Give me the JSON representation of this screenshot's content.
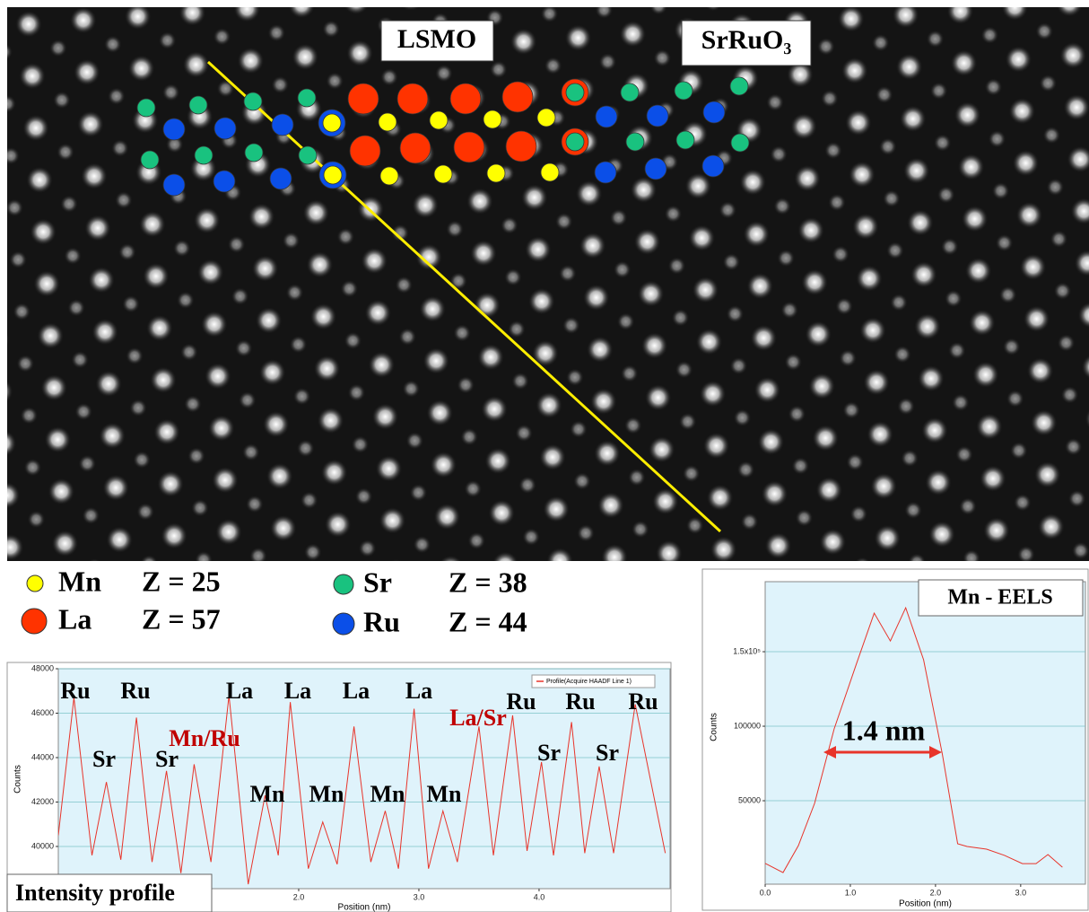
{
  "image": {
    "labels": [
      "LSMO",
      "SrRuO₃"
    ]
  },
  "legend": [
    {
      "element": "Mn",
      "z": "Z = 25",
      "color": "#ffff00"
    },
    {
      "element": "La",
      "z": "Z = 57",
      "color": "#ff3300"
    },
    {
      "element": "Sr",
      "z": "Z = 38",
      "color": "#19c27f"
    },
    {
      "element": "Ru",
      "z": "Z = 44",
      "color": "#0b4fe8"
    }
  ],
  "chart_data": [
    {
      "type": "line",
      "title": "Intensity profile",
      "xlabel": "Position (nm)",
      "ylabel": "Counts",
      "x": [
        0.0,
        0.13,
        0.28,
        0.4,
        0.52,
        0.65,
        0.78,
        0.9,
        1.02,
        1.13,
        1.27,
        1.42,
        1.58,
        1.72,
        1.83,
        1.93,
        2.08,
        2.2,
        2.32,
        2.46,
        2.6,
        2.72,
        2.83,
        2.96,
        3.08,
        3.2,
        3.32,
        3.5,
        3.62,
        3.78,
        3.9,
        4.02,
        4.12,
        4.27,
        4.38,
        4.5,
        4.62,
        4.8,
        5.05
      ],
      "series": [
        {
          "name": "Profile(Acquire HAADF Line 1)",
          "color": "#e8342a",
          "values": [
            40500,
            46700,
            39600,
            42900,
            39400,
            45800,
            39300,
            43400,
            38800,
            43700,
            39300,
            46800,
            38300,
            42300,
            39600,
            46500,
            39000,
            41100,
            39200,
            45400,
            39300,
            41600,
            39000,
            46200,
            39000,
            41600,
            39300,
            45400,
            39600,
            45900,
            39800,
            43800,
            39600,
            45600,
            39700,
            43600,
            39700,
            46400,
            39700
          ]
        }
      ],
      "xlim": [
        0,
        5.09
      ],
      "ylim": [
        38100,
        48000
      ],
      "xticks": [
        {
          "value": 2,
          "label": "2.0"
        },
        {
          "value": 3,
          "label": "3.0"
        },
        {
          "value": 4,
          "label": "4.0"
        }
      ],
      "yticks": [
        40000,
        42000,
        44000,
        46000,
        48000
      ],
      "grid": true,
      "legend_position": "upper right",
      "annotations": [
        {
          "text": "Ru",
          "color": "#000000"
        },
        {
          "text": "Ru",
          "color": "#000000"
        },
        {
          "text": "Sr",
          "color": "#000000"
        },
        {
          "text": "Sr",
          "color": "#000000"
        },
        {
          "text": "Mn/Ru",
          "color": "#c00000"
        },
        {
          "text": "La",
          "color": "#000000"
        },
        {
          "text": "La",
          "color": "#000000"
        },
        {
          "text": "La",
          "color": "#000000"
        },
        {
          "text": "La",
          "color": "#000000"
        },
        {
          "text": "Mn",
          "color": "#000000"
        },
        {
          "text": "Mn",
          "color": "#000000"
        },
        {
          "text": "Mn",
          "color": "#000000"
        },
        {
          "text": "Mn",
          "color": "#000000"
        },
        {
          "text": "La/Sr",
          "color": "#c00000"
        },
        {
          "text": "Ru",
          "color": "#000000"
        },
        {
          "text": "Ru",
          "color": "#000000"
        },
        {
          "text": "Ru",
          "color": "#000000"
        },
        {
          "text": "Sr",
          "color": "#000000"
        },
        {
          "text": "Sr",
          "color": "#000000"
        }
      ]
    },
    {
      "type": "line",
      "title": "Mn - EELS",
      "xlabel": "Position (nm)",
      "ylabel": "Counts",
      "x": [
        0.0,
        0.21,
        0.39,
        0.58,
        0.81,
        1.07,
        1.28,
        1.47,
        1.65,
        1.86,
        2.08,
        2.26,
        2.37,
        2.6,
        2.81,
        3.02,
        3.18,
        3.32,
        3.49
      ],
      "values": [
        8000,
        1800,
        19900,
        48200,
        98200,
        141600,
        175900,
        157200,
        179500,
        144600,
        81300,
        21100,
        19300,
        17500,
        13300,
        7800,
        7800,
        13900,
        5400
      ],
      "color": "#e8342a",
      "xlim": [
        0,
        3.76
      ],
      "ylim": [
        -6000,
        197000
      ],
      "xticks": [
        {
          "value": 0,
          "label": "0.0"
        },
        {
          "value": 1,
          "label": "1.0"
        },
        {
          "value": 2,
          "label": "2.0"
        },
        {
          "value": 3,
          "label": "3.0"
        }
      ],
      "yticks": [
        50000,
        100000,
        {
          "value": 150000,
          "label": "1.5x10⁵"
        }
      ],
      "grid": true,
      "annotations": [
        {
          "text": "1.4 nm",
          "color": "#000000"
        }
      ]
    }
  ]
}
